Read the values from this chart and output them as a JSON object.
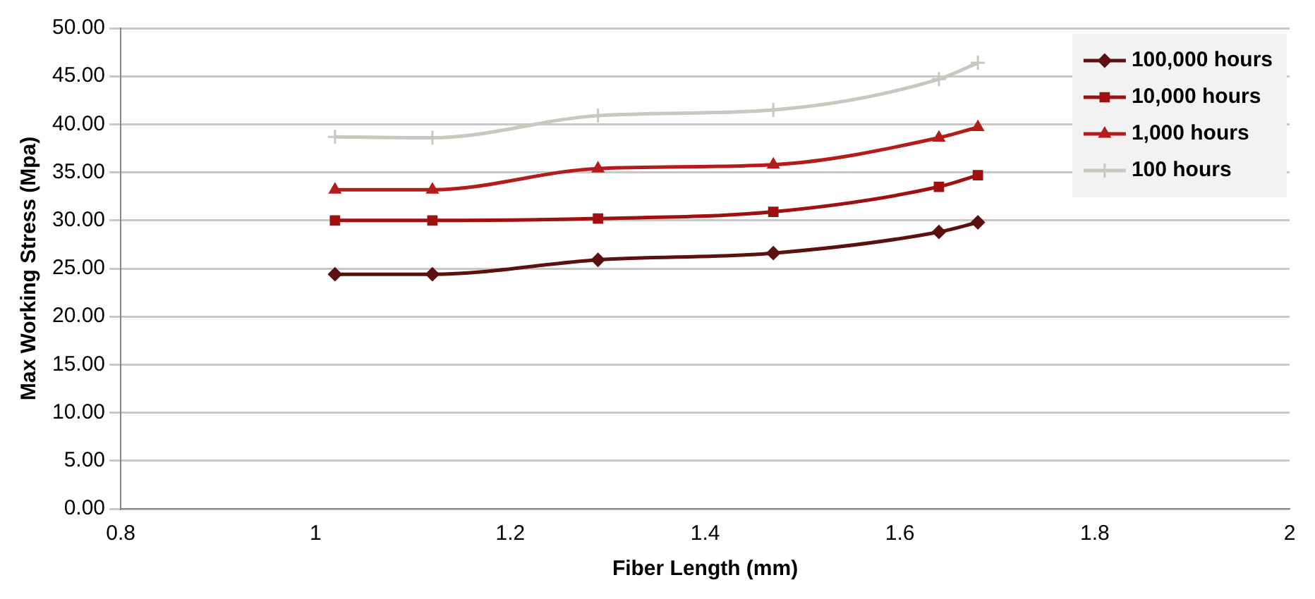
{
  "chart_data": {
    "type": "line",
    "xlabel": "Fiber Length (mm)",
    "ylabel": "Max Working Stress (Mpa)",
    "x": [
      1.02,
      1.12,
      1.29,
      1.47,
      1.64,
      1.68
    ],
    "series": [
      {
        "name": "100,000 hours",
        "color": "#5c1010",
        "marker": "diamond",
        "values": [
          24.4,
          24.4,
          25.9,
          26.6,
          28.8,
          29.8
        ]
      },
      {
        "name": "10,000 hours",
        "color": "#a01010",
        "marker": "square",
        "values": [
          30.0,
          30.0,
          30.2,
          30.9,
          33.5,
          34.7
        ]
      },
      {
        "name": "1,000 hours",
        "color": "#b41c1c",
        "marker": "triangle",
        "values": [
          33.2,
          33.2,
          35.4,
          35.8,
          38.6,
          39.7
        ]
      },
      {
        "name": "100 hours",
        "color": "#c8c8c0",
        "marker": "cross",
        "values": [
          38.7,
          38.6,
          40.9,
          41.5,
          44.7,
          46.4
        ]
      }
    ],
    "xlim": [
      0.8,
      2
    ],
    "xticks": [
      0.8,
      1,
      1.2,
      1.4,
      1.6,
      1.8,
      2
    ],
    "ylim": [
      0,
      50
    ],
    "yticks": [
      {
        "value": 0,
        "label": "0.00"
      },
      {
        "value": 5,
        "label": "5.00"
      },
      {
        "value": 10,
        "label": "10.00"
      },
      {
        "value": 15,
        "label": "15.00"
      },
      {
        "value": 20,
        "label": "20.00"
      },
      {
        "value": 25,
        "label": "25.00"
      },
      {
        "value": 30,
        "label": "30.00"
      },
      {
        "value": 35,
        "label": "35.00"
      },
      {
        "value": 40,
        "label": "40.00"
      },
      {
        "value": 45,
        "label": "45.00"
      },
      {
        "value": 50,
        "label": "50.00"
      }
    ],
    "grid": "y",
    "legend": "top right",
    "line_style": "solid"
  }
}
